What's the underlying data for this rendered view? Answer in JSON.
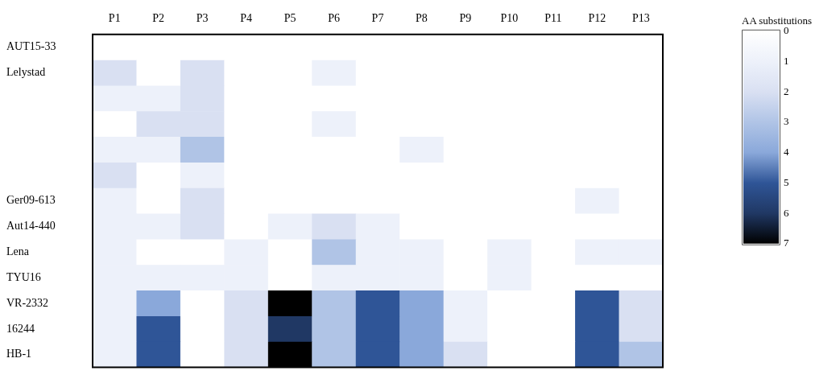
{
  "chart_data": {
    "type": "heatmap",
    "legend_title": "AA substitutions",
    "categories": [
      "P1",
      "P2",
      "P3",
      "P4",
      "P5",
      "P6",
      "P7",
      "P8",
      "P9",
      "P10",
      "P11",
      "P12",
      "P13"
    ],
    "y_categories": [
      "AUT15-33",
      "Lelystad",
      null,
      null,
      null,
      null,
      "Ger09-613",
      "Aut14-440",
      "Lena",
      "TYU16",
      "VR-2332",
      "16244",
      "HB-1"
    ],
    "cells": [
      [
        0,
        0,
        0,
        0,
        0,
        0,
        0,
        0,
        0,
        0,
        0,
        0,
        0
      ],
      [
        2,
        0,
        2,
        0,
        0,
        1,
        0,
        0,
        0,
        0,
        0,
        0,
        0
      ],
      [
        1,
        1,
        2,
        0,
        0,
        0,
        0,
        0,
        0,
        0,
        0,
        0,
        0
      ],
      [
        0,
        2,
        2,
        0,
        0,
        1,
        0,
        0,
        0,
        0,
        0,
        0,
        0
      ],
      [
        1,
        1,
        3,
        0,
        0,
        0,
        0,
        1,
        0,
        0,
        0,
        0,
        0
      ],
      [
        2,
        0,
        1,
        0,
        0,
        0,
        0,
        0,
        0,
        0,
        0,
        0,
        0
      ],
      [
        1,
        0,
        2,
        0,
        0,
        0,
        0,
        0,
        0,
        0,
        0,
        1,
        0
      ],
      [
        1,
        1,
        2,
        0,
        1,
        2,
        1,
        0,
        0,
        0,
        0,
        0,
        0
      ],
      [
        1,
        0,
        0,
        1,
        0,
        3,
        1,
        1,
        0,
        1,
        0,
        1,
        1
      ],
      [
        1,
        1,
        1,
        1,
        0,
        1,
        1,
        1,
        0,
        1,
        0,
        0,
        0
      ],
      [
        1,
        4,
        0,
        2,
        7,
        3,
        5,
        4,
        1,
        0,
        0,
        5,
        2
      ],
      [
        1,
        5,
        0,
        2,
        6,
        3,
        5,
        4,
        1,
        0,
        0,
        5,
        2
      ],
      [
        1,
        5,
        0,
        2,
        7,
        3,
        5,
        4,
        2,
        0,
        0,
        5,
        3
      ]
    ],
    "clim": [
      0,
      7
    ],
    "cticks": [
      0,
      1,
      2,
      3,
      4,
      5,
      6,
      7
    ],
    "colors": [
      "#ffffff",
      "#edf1fa",
      "#d9e0f2",
      "#b0c4e6",
      "#8aa8da",
      "#2f5597",
      "#203864",
      "#000000"
    ]
  }
}
